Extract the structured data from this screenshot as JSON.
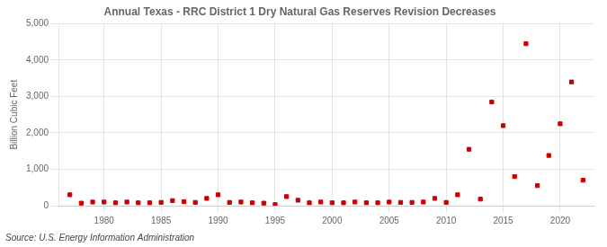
{
  "chart_data": {
    "type": "scatter",
    "title": "Annual Texas - RRC District 1 Dry Natural Gas Reserves Revision Decreases",
    "ylabel": "Billion Cubic Feet",
    "annotations": [
      "Source: U.S. Energy Information Administration"
    ],
    "color": "#cc0000",
    "marker": "square",
    "grid": true,
    "xlim": [
      1976,
      2023
    ],
    "ylim": [
      0,
      5000
    ],
    "xticks": [
      1980,
      1985,
      1990,
      1995,
      2000,
      2005,
      2010,
      2015,
      2020
    ],
    "yticks": [
      0,
      {
        "value": 1000,
        "label": "1,000"
      },
      {
        "value": 2000,
        "label": "2,000"
      },
      {
        "value": 3000,
        "label": "3,000"
      },
      {
        "value": 4000,
        "label": "4,000"
      },
      {
        "value": 5000,
        "label": "5,000"
      }
    ],
    "x": [
      1977,
      1978,
      1979,
      1980,
      1981,
      1982,
      1983,
      1984,
      1985,
      1986,
      1987,
      1988,
      1989,
      1990,
      1991,
      1992,
      1993,
      1994,
      1995,
      1996,
      1997,
      1998,
      1999,
      2000,
      2001,
      2002,
      2003,
      2004,
      2005,
      2006,
      2007,
      2008,
      2009,
      2010,
      2011,
      2012,
      2013,
      2014,
      2015,
      2016,
      2017,
      2018,
      2019,
      2020,
      2021,
      2022
    ],
    "values": [
      300,
      70,
      100,
      100,
      80,
      100,
      80,
      80,
      90,
      140,
      110,
      90,
      200,
      300,
      90,
      100,
      80,
      70,
      30,
      250,
      150,
      80,
      100,
      80,
      80,
      100,
      80,
      80,
      100,
      90,
      90,
      100,
      200,
      90,
      300,
      1550,
      180,
      2850,
      2200,
      800,
      4450,
      550,
      1380,
      2250,
      3400,
      700
    ]
  }
}
